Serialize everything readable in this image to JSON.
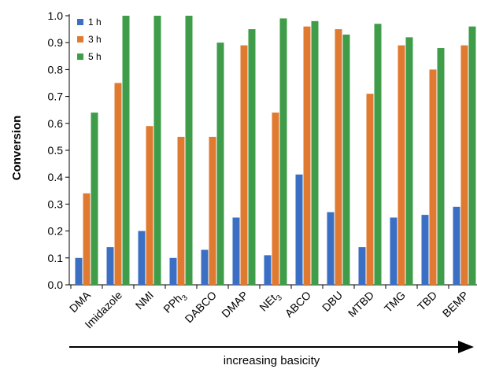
{
  "chart_data": {
    "type": "bar",
    "categories": [
      "DMA",
      "Imidazole",
      "NMI",
      "PPh3",
      "DABCO",
      "DMAP",
      "NEt3",
      "ABCO",
      "DBU",
      "MTBD",
      "TMG",
      "TBD",
      "BEMP"
    ],
    "series": [
      {
        "name": "1 h",
        "color": "#3a6fc4",
        "values": [
          0.1,
          0.14,
          0.2,
          0.1,
          0.13,
          0.25,
          0.11,
          0.41,
          0.27,
          0.14,
          0.25,
          0.26,
          0.29
        ]
      },
      {
        "name": "3 h",
        "color": "#e07a30",
        "values": [
          0.34,
          0.75,
          0.59,
          0.55,
          0.55,
          0.89,
          0.64,
          0.96,
          0.95,
          0.71,
          0.89,
          0.8,
          0.89
        ]
      },
      {
        "name": "5 h",
        "color": "#3f9c48",
        "values": [
          0.64,
          1.0,
          1.0,
          1.0,
          0.9,
          0.95,
          0.99,
          0.98,
          0.93,
          0.97,
          0.92,
          0.88,
          0.96
        ]
      }
    ],
    "xlabel": "increasing basicity",
    "ylabel": "Conversion",
    "ylim": [
      0.0,
      1.0
    ],
    "yticks": [
      "0.0",
      "0.1",
      "0.2",
      "0.3",
      "0.4",
      "0.5",
      "0.6",
      "0.7",
      "0.8",
      "0.9",
      "1.0"
    ],
    "legend_position": "top-left",
    "grid": false
  }
}
